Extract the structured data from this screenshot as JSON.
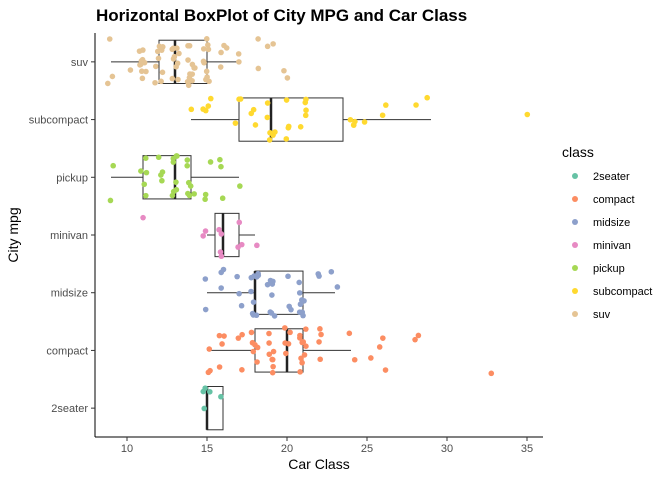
{
  "chart_data": {
    "type": "boxplot-horizontal",
    "title": "Horizontal BoxPlot of City MPG and Car Class",
    "xlabel": "Car Class",
    "ylabel": "City mpg",
    "xlim": [
      8,
      36
    ],
    "xticks": [
      10,
      15,
      20,
      25,
      30,
      35
    ],
    "categories": [
      "2seater",
      "compact",
      "midsize",
      "minivan",
      "pickup",
      "subcompact",
      "suv"
    ],
    "legend": {
      "title": "class",
      "position": "right",
      "entries": [
        {
          "label": "2seater",
          "color": "#66C2A5"
        },
        {
          "label": "compact",
          "color": "#FC8D62"
        },
        {
          "label": "midsize",
          "color": "#8DA0CB"
        },
        {
          "label": "minivan",
          "color": "#E78AC3"
        },
        {
          "label": "pickup",
          "color": "#A6D854"
        },
        {
          "label": "subcompact",
          "color": "#FFD92F"
        },
        {
          "label": "suv",
          "color": "#E5C494"
        }
      ]
    },
    "boxes": [
      {
        "category": "2seater",
        "min": 15,
        "q1": 15,
        "median": 15,
        "q3": 16,
        "max": 16
      },
      {
        "category": "compact",
        "min": 15,
        "q1": 18,
        "median": 20,
        "q3": 21,
        "max": 24
      },
      {
        "category": "midsize",
        "min": 15,
        "q1": 18,
        "median": 18,
        "q3": 21,
        "max": 23
      },
      {
        "category": "minivan",
        "min": 15,
        "q1": 15.5,
        "median": 16,
        "q3": 17,
        "max": 18
      },
      {
        "category": "pickup",
        "min": 9,
        "q1": 11,
        "median": 13,
        "q3": 14,
        "max": 17
      },
      {
        "category": "subcompact",
        "min": 14,
        "q1": 17,
        "median": 19,
        "q3": 23.5,
        "max": 29
      },
      {
        "category": "suv",
        "min": 9,
        "q1": 12,
        "median": 13,
        "q3": 15,
        "max": 17
      }
    ],
    "outliers": [
      {
        "category": "compact",
        "values": [
          26,
          26,
          28,
          33,
          25
        ]
      },
      {
        "category": "midsize",
        "values": []
      },
      {
        "category": "minivan",
        "values": [
          11
        ]
      },
      {
        "category": "subcompact",
        "values": [
          35
        ]
      },
      {
        "category": "suv",
        "values": [
          20,
          20,
          18,
          18,
          19,
          19
        ]
      }
    ],
    "points": [
      {
        "category": "2seater",
        "values": [
          15,
          16,
          15,
          15,
          15
        ]
      },
      {
        "category": "compact",
        "values": [
          18,
          21,
          20,
          21,
          18,
          16,
          18,
          18,
          16,
          20,
          19,
          15,
          17,
          17,
          15,
          15,
          17,
          16,
          19,
          20,
          21,
          21,
          22,
          21,
          22,
          21,
          19,
          18,
          19,
          19,
          28,
          26,
          24,
          21,
          19,
          21,
          20,
          19,
          18,
          24,
          22,
          21,
          22,
          21,
          16,
          19,
          20
        ]
      },
      {
        "category": "midsize",
        "values": [
          18,
          16,
          18,
          18,
          17,
          15,
          19,
          22,
          18,
          23,
          21,
          21,
          18,
          19,
          19,
          20,
          21,
          19,
          23,
          21,
          19,
          22,
          16,
          20,
          17,
          19,
          21,
          21,
          18,
          18,
          21,
          19,
          20,
          18,
          18,
          21,
          16,
          15,
          19,
          17,
          18
        ]
      },
      {
        "category": "minivan",
        "values": [
          15,
          16,
          16,
          16,
          17,
          17,
          18,
          16,
          15,
          17
        ]
      },
      {
        "category": "pickup",
        "values": [
          15,
          14,
          13,
          13,
          13,
          9,
          11,
          12,
          11,
          12,
          17,
          13,
          16,
          14,
          14,
          11,
          11,
          12,
          14,
          13,
          13,
          11,
          16,
          15,
          14,
          14,
          12,
          9,
          13,
          16,
          15,
          14,
          13
        ]
      },
      {
        "category": "subcompact",
        "values": [
          15,
          18,
          15,
          17,
          17,
          15,
          15,
          14,
          20,
          19,
          21,
          19,
          17,
          19,
          21,
          24,
          21,
          19,
          20,
          24,
          26,
          25,
          20,
          18,
          21,
          19,
          19,
          18,
          24,
          20,
          26,
          29,
          28,
          24,
          21
        ]
      },
      {
        "category": "suv",
        "values": [
          14,
          11,
          14,
          13,
          12,
          16,
          15,
          14,
          11,
          11,
          14,
          11,
          13,
          12,
          14,
          13,
          11,
          15,
          13,
          12,
          13,
          15,
          15,
          11,
          12,
          13,
          11,
          15,
          9,
          14,
          12,
          12,
          16,
          17,
          15,
          11,
          13,
          14,
          13,
          15,
          12,
          14,
          11,
          9,
          12,
          13,
          14,
          10,
          9,
          11,
          13,
          14,
          17,
          14,
          16,
          15,
          15,
          14,
          16,
          12,
          11,
          15
        ]
      }
    ]
  }
}
